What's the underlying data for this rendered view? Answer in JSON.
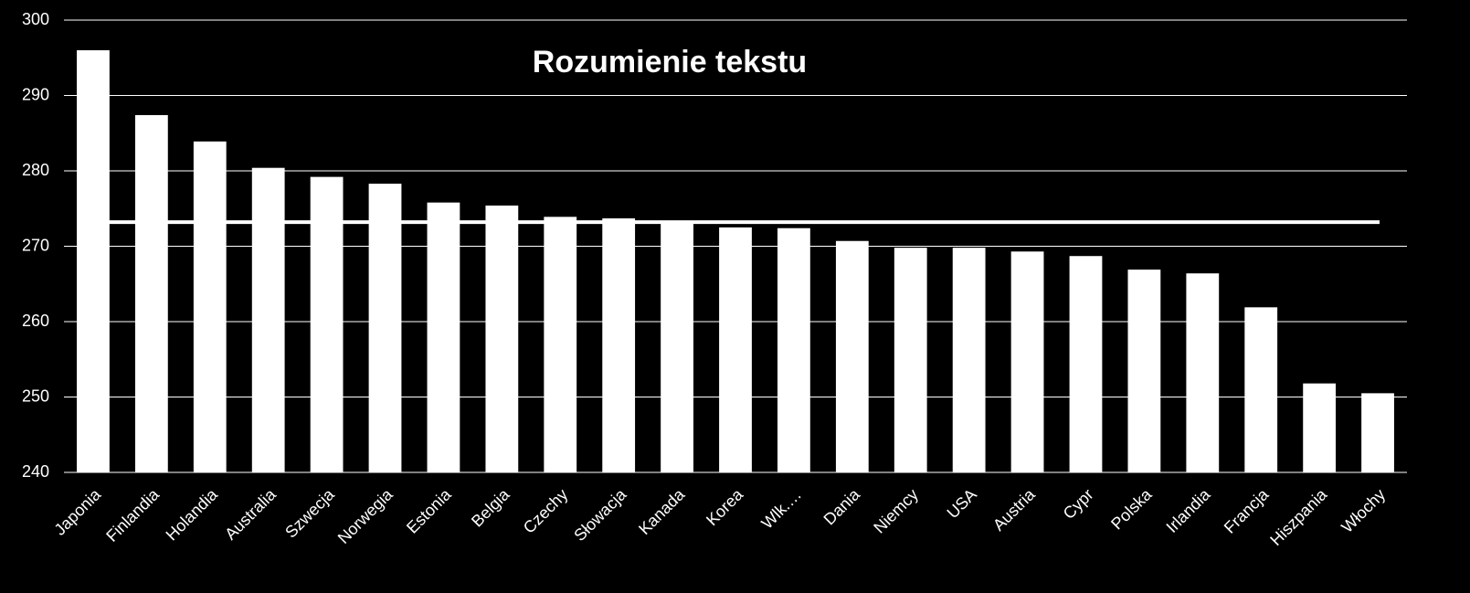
{
  "chart_data": {
    "type": "bar",
    "title": "Rozumienie tekstu",
    "categories": [
      "Japonia",
      "Finlandia",
      "Holandia",
      "Australia",
      "Szwecja",
      "Norwegia",
      "Estonia",
      "Belgia",
      "Czechy",
      "Słowacja",
      "Kanada",
      "Korea",
      "Wlk.…",
      "Dania",
      "Niemcy",
      "USA",
      "Austria",
      "Cypr",
      "Polska",
      "Irlandia",
      "Francja",
      "Hiszpania",
      "Włochy"
    ],
    "values": [
      296,
      287.4,
      283.9,
      280.4,
      279.2,
      278.3,
      275.8,
      275.4,
      273.9,
      273.7,
      273.3,
      272.5,
      272.4,
      270.7,
      269.8,
      269.8,
      269.3,
      268.7,
      266.9,
      266.4,
      261.9,
      251.8,
      250.5
    ],
    "color": "#ffffff",
    "reference_line": 273.2,
    "ylim": [
      240,
      300
    ],
    "yticks": [
      240,
      250,
      260,
      270,
      280,
      290,
      300
    ],
    "grid": true
  }
}
